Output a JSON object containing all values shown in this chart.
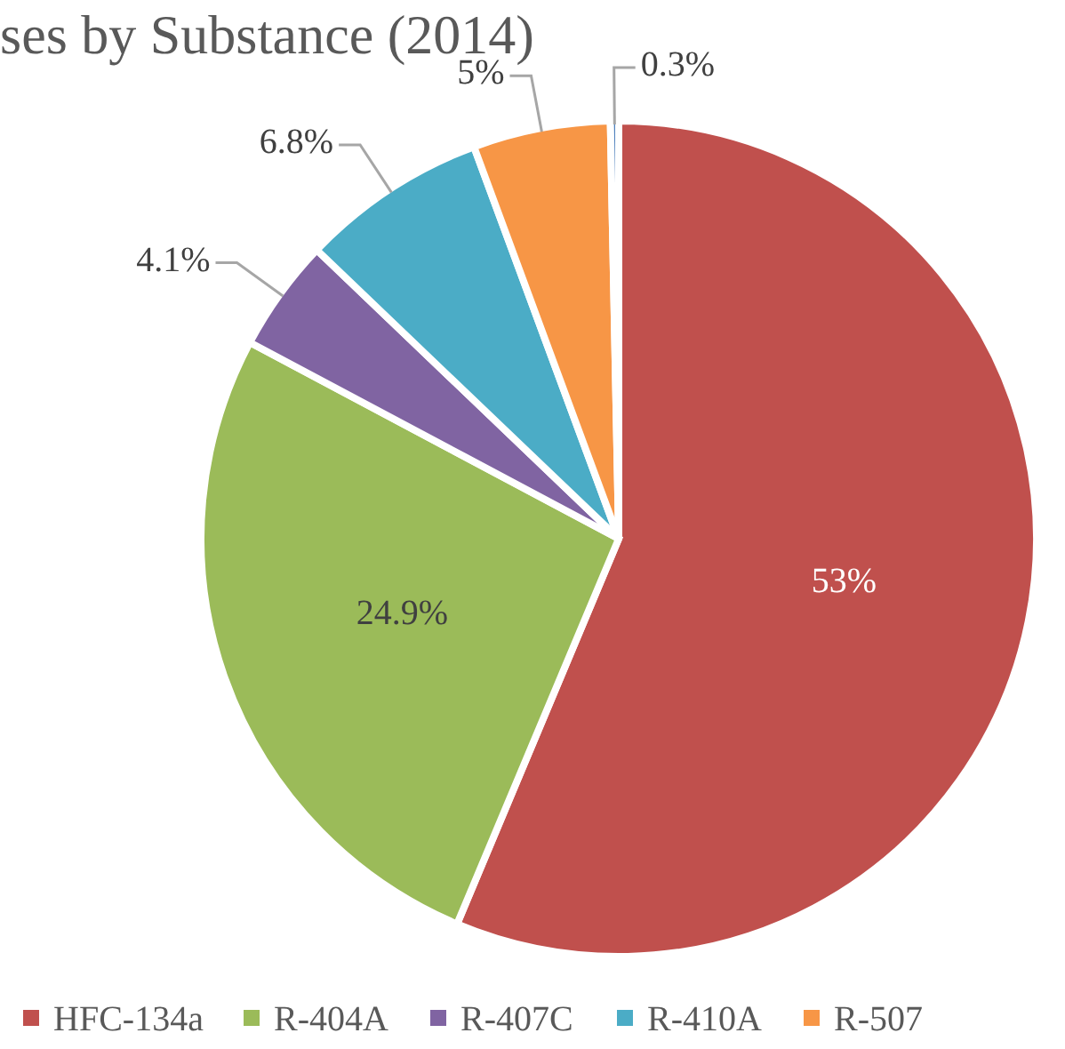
{
  "chart_data": {
    "type": "pie",
    "title": "ses by Substance (2014)",
    "categories": [
      "HFC-134a",
      "R-404A",
      "R-407C",
      "R-410A",
      "R-507",
      null
    ],
    "values": [
      53,
      24.9,
      4.1,
      6.8,
      5,
      0.3
    ],
    "colors": [
      "#c0504d",
      "#9bbb59",
      "#8064a2",
      "#4bacc6",
      "#f79646",
      "#4f81bd"
    ],
    "value_labels": [
      "53%",
      "24.9%",
      "4.1%",
      "6.8%",
      "5%",
      "0.3%"
    ],
    "legend": "bottom"
  }
}
